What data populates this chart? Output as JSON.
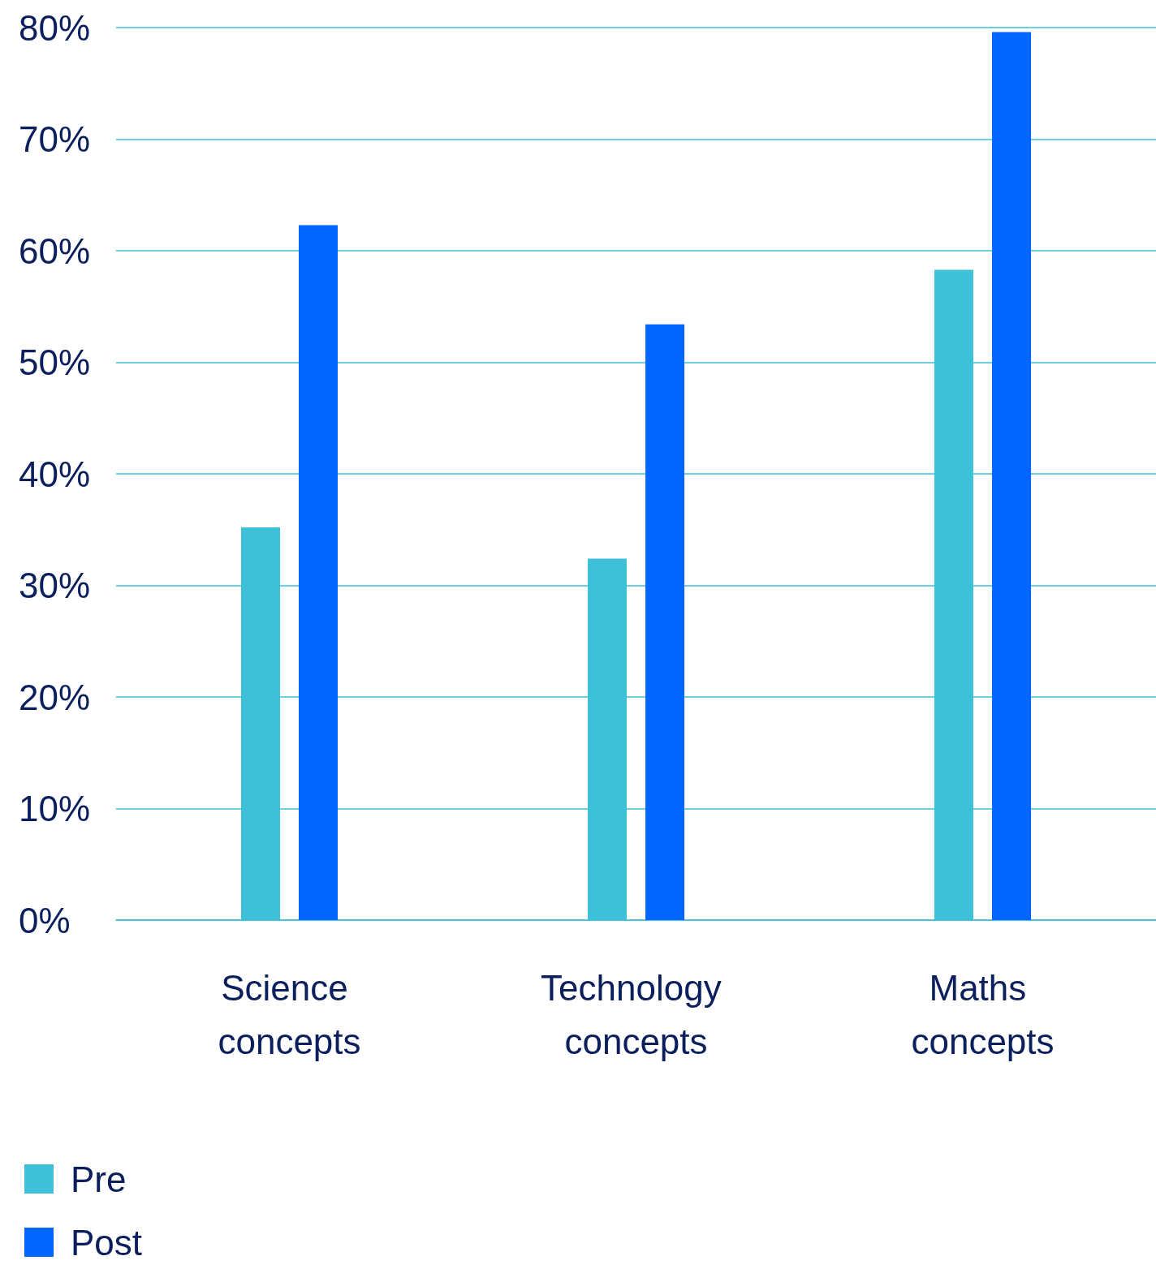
{
  "chart_data": {
    "type": "bar",
    "categories": [
      "Science concepts",
      "Technology concepts",
      "Maths concepts"
    ],
    "series": [
      {
        "name": "Pre",
        "color": "#3dc0d8",
        "values": [
          35.2,
          32.4,
          58.3
        ]
      },
      {
        "name": "Post",
        "color": "#0066ff",
        "values": [
          62.3,
          53.4,
          79.6
        ]
      }
    ],
    "ylim": [
      0,
      80
    ],
    "yticks": [
      {
        "value": 0,
        "label": "0%"
      },
      {
        "value": 10,
        "label": "10%"
      },
      {
        "value": 20,
        "label": "20%"
      },
      {
        "value": 30,
        "label": "30%"
      },
      {
        "value": 40,
        "label": "40%"
      },
      {
        "value": 50,
        "label": "50%"
      },
      {
        "value": 60,
        "label": "60%"
      },
      {
        "value": 70,
        "label": "70%"
      },
      {
        "value": 80,
        "label": "80%"
      }
    ],
    "grid": "y",
    "legend": "bottom left"
  }
}
